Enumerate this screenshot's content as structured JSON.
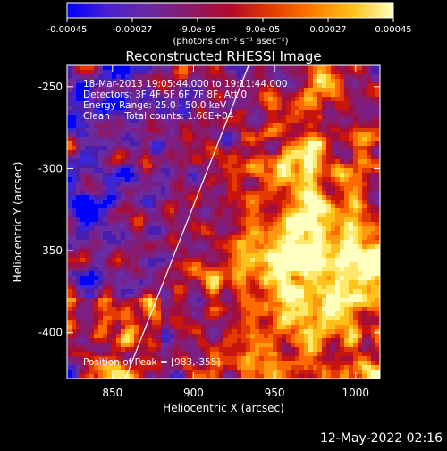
{
  "colorbar": {
    "ticks": [
      "-0.00045",
      "-0.00027",
      "-9.0e-05",
      "9.0e-05",
      "0.00027",
      "0.00045"
    ],
    "unit_label": "(photons cm⁻² s⁻¹ asec⁻²)",
    "colors": [
      "#0000ff",
      "#4a1fd0",
      "#6a2aa0",
      "#8a1a6a",
      "#b30a2a",
      "#e23a00",
      "#ff7a00",
      "#ffc21a",
      "#ffffc0"
    ]
  },
  "chart_data": {
    "type": "heatmap",
    "title": "Reconstructed RHESSI Image",
    "xlabel": "Heliocentric X (arcsec)",
    "ylabel": "Heliocentric Y (arcsec)",
    "xlim": [
      822,
      1015
    ],
    "ylim": [
      -428,
      -237
    ],
    "xticks": [
      850,
      900,
      950,
      1000
    ],
    "yticks": [
      -250,
      -300,
      -350,
      -400
    ],
    "xtick_labels": [
      "850",
      "900",
      "950",
      "1000"
    ],
    "ytick_labels": [
      "-250",
      "-300",
      "-350",
      "-400"
    ],
    "limb_line": [
      [
        858,
        -428
      ],
      [
        934,
        -237
      ]
    ],
    "annotations": [
      "18-Mar-2013 19:05:44.000 to 19:11:44.000",
      "Detectors: 3F 4F 5F 6F 7F 8F, Att 0",
      "Energy Range: 25.0 - 50.0 keV",
      "Clean     Total counts: 1.66E+04"
    ],
    "peak_label": "Position of Peak = [983,-355]",
    "peak": [
      983,
      -355
    ]
  },
  "footer": {
    "timestamp": "12-May-2022 02:16"
  }
}
